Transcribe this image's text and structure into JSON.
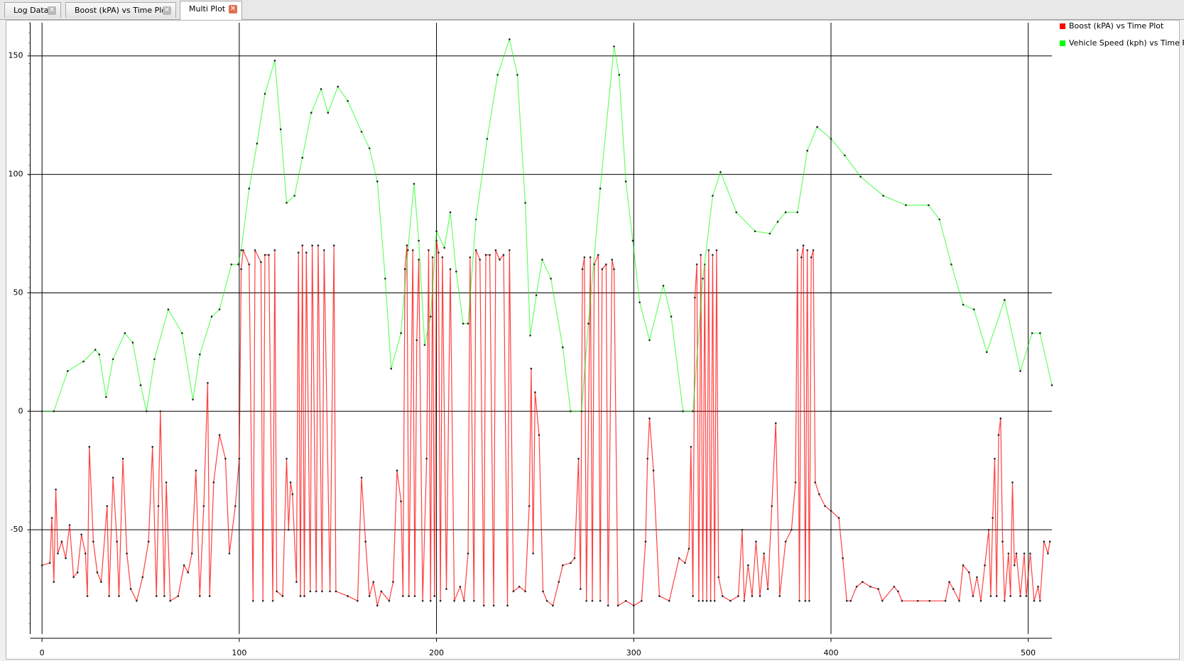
{
  "tabs": [
    "Log Data",
    "Boost (kPA) vs Time Plot",
    "Multi Plot"
  ],
  "chart_data": {
    "type": "line",
    "grid": true,
    "legend": "upper right",
    "xlim": [
      -6,
      512
    ],
    "ylim": [
      -94,
      164
    ],
    "xticks": [
      0,
      100,
      200,
      300,
      400,
      500
    ],
    "yticks": [
      -50,
      0,
      50,
      100,
      150
    ],
    "series": [
      {
        "name": "Boost (kPA) vs Time Plot",
        "color": "#ff0000",
        "x": [
          0,
          4,
          5,
          6,
          7,
          8,
          10,
          12,
          14,
          16,
          18,
          20,
          22,
          23,
          24,
          26,
          28,
          30,
          33,
          34,
          36,
          38,
          39,
          41,
          43,
          45,
          48,
          51,
          54,
          56,
          58,
          59,
          60,
          62,
          63,
          65,
          69,
          72,
          74,
          76,
          78,
          80,
          82,
          84,
          85,
          87,
          90,
          93,
          95,
          98,
          100,
          101,
          102,
          105,
          107,
          108,
          111,
          112,
          113,
          115,
          117,
          118,
          119,
          122,
          124,
          125,
          126,
          127,
          129,
          130,
          131,
          132,
          133,
          134,
          136,
          137,
          139,
          140,
          142,
          143,
          146,
          148,
          149,
          155,
          160,
          162,
          164,
          166,
          168,
          170,
          172,
          176,
          178,
          180,
          182,
          183,
          184,
          185,
          186,
          188,
          189,
          190,
          191,
          193,
          195,
          196,
          197,
          198,
          199,
          200,
          201,
          202,
          203,
          205,
          207,
          209,
          212,
          214,
          216,
          217,
          219,
          220,
          222,
          224,
          225,
          227,
          229,
          230,
          232,
          234,
          236,
          237,
          239,
          242,
          245,
          247,
          248,
          249,
          250,
          252,
          254,
          256,
          259,
          262,
          264,
          268,
          270,
          272,
          273,
          274,
          275,
          276,
          278,
          279,
          280,
          282,
          283,
          284,
          286,
          287,
          289,
          290,
          292,
          296,
          300,
          304,
          306,
          307,
          308,
          310,
          313,
          318,
          323,
          326,
          328,
          329,
          330,
          331,
          332,
          333,
          334,
          335,
          336,
          337,
          338,
          339,
          340,
          341,
          342,
          343,
          345,
          349,
          353,
          355,
          356,
          358,
          360,
          362,
          364,
          366,
          368,
          370,
          372,
          374,
          377,
          380,
          382,
          383,
          384,
          385,
          386,
          387,
          388,
          389,
          390,
          391,
          392,
          394,
          397,
          400,
          404,
          406,
          408,
          410,
          413,
          416,
          420,
          424,
          426,
          432,
          434,
          436,
          444,
          450,
          458,
          460,
          462,
          465,
          467,
          470,
          472,
          474,
          476,
          478,
          480,
          481,
          482,
          483,
          484,
          485,
          486,
          487,
          488,
          490,
          491,
          492,
          493,
          494,
          496,
          498,
          499,
          501,
          503,
          505,
          506,
          508,
          510,
          511
        ],
        "values": [
          -65,
          -64,
          -45,
          -72,
          -33,
          -60,
          -55,
          -62,
          -48,
          -70,
          -68,
          -52,
          -60,
          -78,
          -15,
          -55,
          -68,
          -72,
          -40,
          -78,
          -28,
          -55,
          -78,
          -20,
          -60,
          -75,
          -80,
          -70,
          -55,
          -15,
          -78,
          -40,
          0,
          -78,
          -30,
          -80,
          -78,
          -65,
          -68,
          -60,
          -25,
          -78,
          -40,
          12,
          -78,
          -30,
          -10,
          -20,
          -60,
          -40,
          -20,
          60,
          68,
          62,
          -80,
          68,
          63,
          -80,
          66,
          66,
          -80,
          68,
          -76,
          -78,
          -20,
          -50,
          -30,
          -35,
          -72,
          67,
          -78,
          70,
          -78,
          67,
          -76,
          70,
          -76,
          70,
          -76,
          68,
          -76,
          70,
          -76,
          -78,
          -80,
          -28,
          -55,
          -78,
          -72,
          -82,
          -76,
          -80,
          -72,
          -25,
          -38,
          -78,
          60,
          70,
          -78,
          68,
          -78,
          30,
          64,
          -80,
          -20,
          68,
          -80,
          65,
          -78,
          72,
          67,
          -80,
          65,
          -75,
          60,
          -80,
          -74,
          -80,
          -60,
          65,
          -80,
          68,
          64,
          -82,
          66,
          66,
          -82,
          68,
          64,
          66,
          -82,
          68,
          -76,
          -74,
          -76,
          -40,
          18,
          -60,
          8,
          -10,
          -76,
          -80,
          -82,
          -72,
          -65,
          -64,
          -62,
          -20,
          -75,
          60,
          65,
          -80,
          65,
          -80,
          62,
          66,
          -80,
          60,
          62,
          -82,
          64,
          60,
          -82,
          -80,
          -82,
          -80,
          -55,
          -20,
          -3,
          -25,
          -78,
          -80,
          -62,
          -64,
          -58,
          -15,
          -78,
          48,
          62,
          -80,
          66,
          -80,
          62,
          -80,
          68,
          -80,
          66,
          -80,
          68,
          -70,
          -78,
          -80,
          -78,
          -50,
          -80,
          -65,
          -78,
          -55,
          -78,
          -60,
          -75,
          -40,
          -5,
          -78,
          -55,
          -50,
          -30,
          68,
          -80,
          65,
          70,
          -80,
          68,
          -80,
          65,
          68,
          -30,
          -35,
          -40,
          -42,
          -45,
          -62,
          -80,
          -80,
          -74,
          -72,
          -74,
          -75,
          -80,
          -74,
          -76,
          -80,
          -80,
          -80,
          -80,
          -72,
          -75,
          -80,
          -65,
          -68,
          -78,
          -70,
          -80,
          -65,
          -50,
          -78,
          -45,
          -20,
          -78,
          -10,
          -3,
          -55,
          -80,
          -60,
          -78,
          -30,
          -65,
          -60,
          -78,
          -60,
          -78,
          -60,
          -80,
          -74,
          -80,
          -55,
          -60,
          -55
        ]
      },
      {
        "name": "Vehicle Speed (kph) vs Time Plot",
        "color": "#00ff00",
        "x": [
          0,
          6,
          13,
          21,
          27,
          29,
          32.5,
          36,
          42,
          46,
          50,
          53,
          57,
          64,
          71,
          76.5,
          80,
          86,
          90,
          96,
          99.5,
          101,
          105,
          109,
          113,
          118,
          121,
          124,
          128,
          132,
          136.5,
          141.5,
          145,
          150,
          155,
          162,
          166,
          170,
          174,
          177,
          182,
          185.5,
          188.6,
          191,
          194,
          197,
          200,
          204,
          207,
          210,
          213.5,
          216,
          220,
          225.7,
          231,
          237,
          241,
          245,
          247.5,
          250.6,
          253.6,
          258,
          264,
          268,
          273.5,
          277,
          283,
          290,
          292.6,
          296,
          299.5,
          303,
          308,
          315,
          319,
          325,
          330,
          335,
          340,
          344,
          352,
          361.5,
          369,
          373,
          377,
          383,
          388,
          393,
          400,
          407,
          415,
          426.5,
          438,
          449.5,
          455,
          461,
          467,
          472.5,
          479,
          488,
          496,
          502,
          506,
          512
        ],
        "values": [
          0,
          0,
          17,
          21,
          26,
          24,
          6,
          22,
          33,
          29,
          11,
          0,
          22,
          43,
          33,
          5,
          24,
          40,
          43,
          62,
          62,
          68,
          94,
          113,
          134,
          148,
          119,
          88,
          91,
          107,
          126,
          136,
          126,
          137,
          131,
          118,
          111,
          97,
          56,
          18,
          33,
          68,
          96,
          72,
          28,
          40,
          76,
          69,
          84,
          59,
          37,
          37,
          81,
          115,
          142,
          157,
          142,
          88,
          32,
          49,
          64,
          56,
          27,
          0,
          0,
          37,
          94,
          154,
          142,
          97,
          72,
          46,
          30,
          53,
          40,
          0,
          0,
          56,
          91,
          101,
          84,
          76,
          75,
          80,
          84,
          84,
          110,
          120,
          115,
          108,
          99,
          91,
          87,
          87,
          81,
          62,
          45,
          43,
          25,
          47,
          17,
          33,
          33,
          11
        ]
      }
    ]
  }
}
